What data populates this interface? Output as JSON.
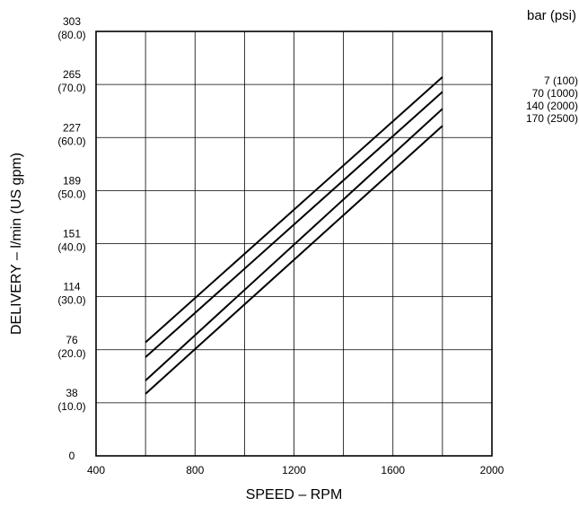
{
  "chart_data": {
    "type": "line",
    "xlabel": "SPEED – RPM",
    "ylabel": "DELIVERY – l/min (US gpm)",
    "xlim": [
      400,
      2000
    ],
    "ylim": [
      0,
      80
    ],
    "grid": true,
    "x_ticks": [
      {
        "value": 400,
        "label": "400"
      },
      {
        "value": 800,
        "label": "800"
      },
      {
        "value": 1200,
        "label": "1200"
      },
      {
        "value": 1600,
        "label": "1600"
      },
      {
        "value": 2000,
        "label": "2000"
      }
    ],
    "x_grid": [
      400,
      600,
      800,
      1000,
      1200,
      1400,
      1600,
      1800,
      2000
    ],
    "y_ticks": [
      {
        "value": 0,
        "lpm": "0",
        "gpm": ""
      },
      {
        "value": 10,
        "lpm": "38",
        "gpm": "(10.0)"
      },
      {
        "value": 20,
        "lpm": "76",
        "gpm": "(20.0)"
      },
      {
        "value": 30,
        "lpm": "114",
        "gpm": "(30.0)"
      },
      {
        "value": 40,
        "lpm": "151",
        "gpm": "(40.0)"
      },
      {
        "value": 50,
        "lpm": "189",
        "gpm": "(50.0)"
      },
      {
        "value": 60,
        "lpm": "227",
        "gpm": "(60.0)"
      },
      {
        "value": 70,
        "lpm": "265",
        "gpm": "(70.0)"
      },
      {
        "value": 80,
        "lpm": "303",
        "gpm": "(80.0)"
      }
    ],
    "legend_title": "bar (psi)",
    "legend_placement": "right",
    "series": [
      {
        "name": "7 (100)",
        "x": [
          600,
          1800
        ],
        "y": [
          21.4,
          71.4
        ]
      },
      {
        "name": "70 (1000)",
        "x": [
          600,
          1800
        ],
        "y": [
          18.6,
          68.6
        ]
      },
      {
        "name": "140 (2000)",
        "x": [
          600,
          1800
        ],
        "y": [
          14.2,
          65.4
        ]
      },
      {
        "name": "170 (2500)",
        "x": [
          600,
          1800
        ],
        "y": [
          11.7,
          62.2
        ]
      }
    ],
    "line_color": "#000000"
  }
}
